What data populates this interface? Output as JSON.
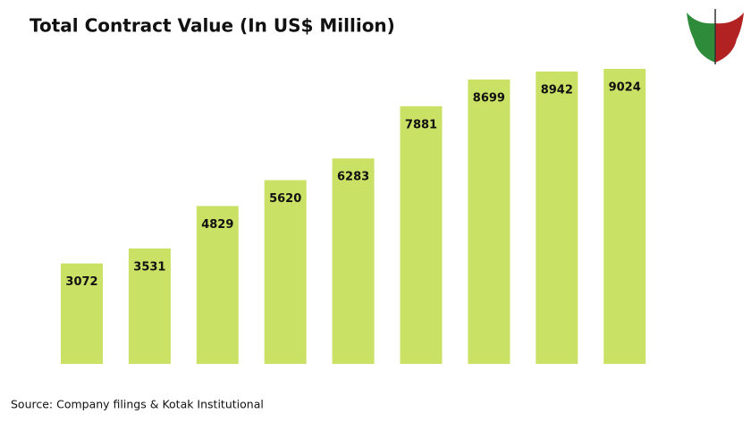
{
  "chart_data": {
    "type": "bar",
    "title": "Total Contract Value (In US$ Million)",
    "values": [
      3072,
      3531,
      4829,
      5620,
      6283,
      7881,
      8699,
      8942,
      9024
    ],
    "color": "#c9e265",
    "source": "Source: Company filings & Kotak Institutional"
  }
}
